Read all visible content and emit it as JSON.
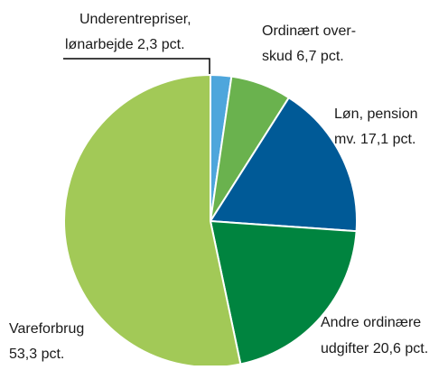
{
  "chart_data": {
    "type": "pie",
    "values": [
      2.3,
      6.7,
      17.1,
      20.6,
      53.3
    ],
    "labels": [
      [
        "Underentrepriser,",
        "lønarbejde 2,3 pct."
      ],
      [
        "Ordinært over-",
        "skud 6,7 pct."
      ],
      [
        "Løn, pension",
        "mv. 17,1 pct."
      ],
      [
        "Andre ordinære",
        "udgifter 20,6 pct."
      ],
      [
        "Vareforbrug",
        "53,3 pct."
      ]
    ],
    "colors": [
      "#4ea6dc",
      "#6ab24e",
      "#005a97",
      "#00843f",
      "#a2c957"
    ]
  }
}
